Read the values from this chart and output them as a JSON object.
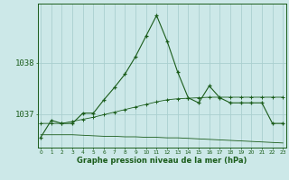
{
  "title": "Graphe pression niveau de la mer (hPa)",
  "bg_color": "#cce8e8",
  "grid_color": "#aacfcf",
  "line_color": "#1a5c1a",
  "x_labels": [
    "0",
    "1",
    "2",
    "3",
    "4",
    "5",
    "6",
    "7",
    "8",
    "9",
    "10",
    "11",
    "12",
    "13",
    "14",
    "15",
    "16",
    "17",
    "18",
    "19",
    "20",
    "21",
    "22",
    "23"
  ],
  "x_values": [
    0,
    1,
    2,
    3,
    4,
    5,
    6,
    7,
    8,
    9,
    10,
    11,
    12,
    13,
    14,
    15,
    16,
    17,
    18,
    19,
    20,
    21,
    22,
    23
  ],
  "series_main": [
    1036.55,
    1036.88,
    1036.82,
    1036.82,
    1037.02,
    1037.02,
    1037.28,
    1037.52,
    1037.78,
    1038.12,
    1038.52,
    1038.92,
    1038.42,
    1037.82,
    1037.32,
    1037.22,
    1037.55,
    1037.32,
    1037.22,
    1037.22,
    1037.22,
    1037.22,
    1036.82,
    1036.82
  ],
  "series_rising": [
    1036.82,
    1036.82,
    1036.82,
    1036.86,
    1036.9,
    1036.94,
    1036.99,
    1037.04,
    1037.09,
    1037.14,
    1037.19,
    1037.24,
    1037.28,
    1037.3,
    1037.31,
    1037.32,
    1037.33,
    1037.33,
    1037.33,
    1037.33,
    1037.33,
    1037.33,
    1037.33,
    1037.33
  ],
  "series_declining": [
    1036.6,
    1036.6,
    1036.6,
    1036.6,
    1036.59,
    1036.58,
    1036.57,
    1036.57,
    1036.56,
    1036.56,
    1036.55,
    1036.55,
    1036.54,
    1036.54,
    1036.53,
    1036.52,
    1036.51,
    1036.5,
    1036.49,
    1036.48,
    1036.47,
    1036.46,
    1036.45,
    1036.44
  ],
  "yticks": [
    1037,
    1038
  ],
  "ylim": [
    1036.35,
    1039.15
  ],
  "xlim": [
    -0.3,
    23.3
  ]
}
